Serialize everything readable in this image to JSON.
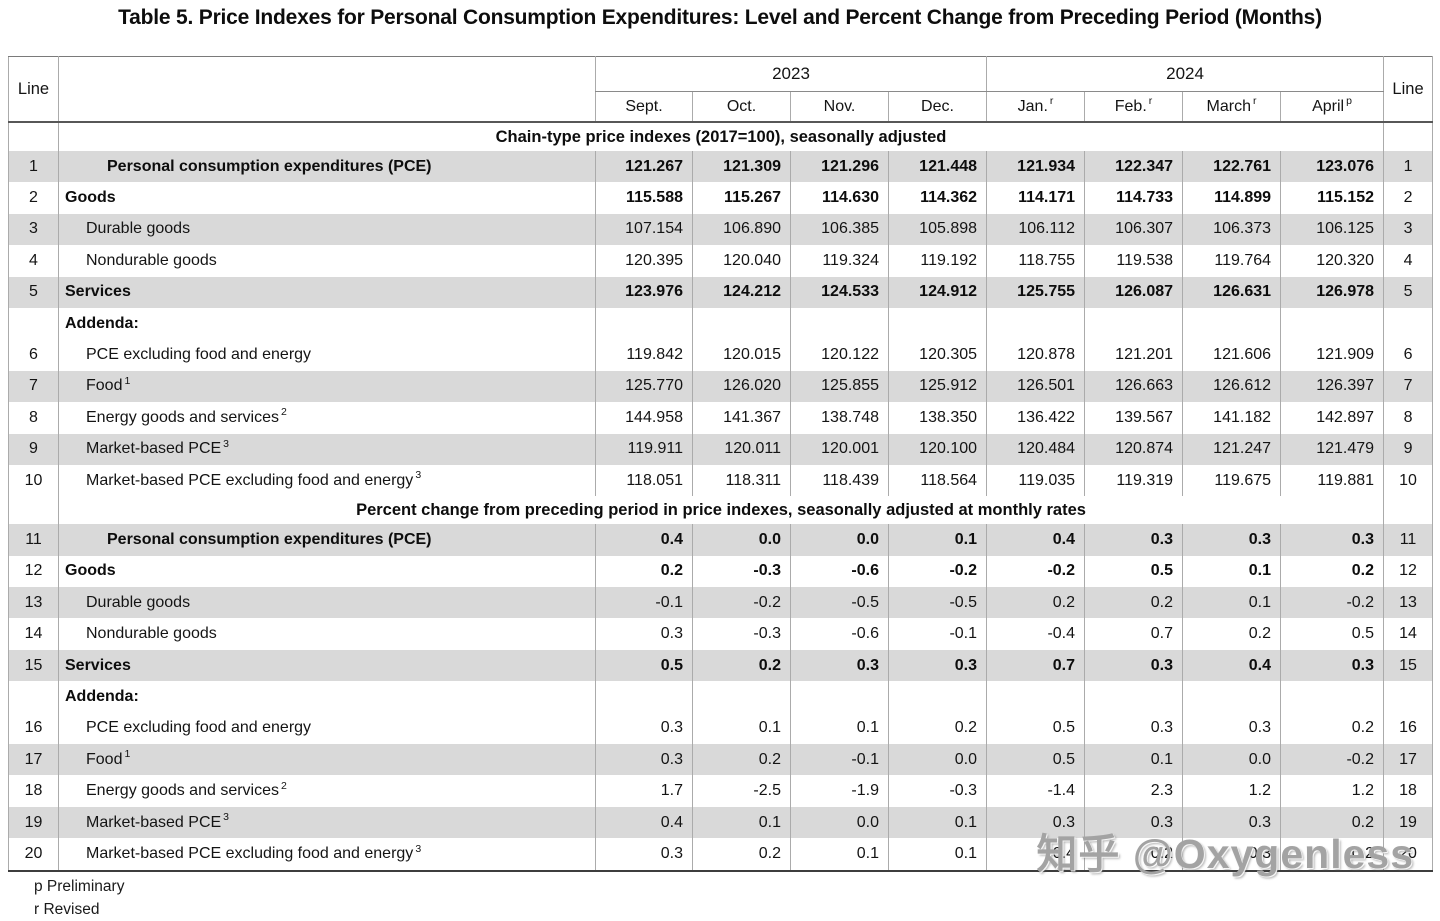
{
  "title": "Table 5. Price Indexes for Personal Consumption Expenditures: Level and Percent Change from Preceding Period (Months)",
  "header": {
    "line_label": "Line",
    "year_groups": [
      {
        "year": "2023",
        "months": [
          {
            "label": "Sept.",
            "sup": ""
          },
          {
            "label": "Oct.",
            "sup": ""
          },
          {
            "label": "Nov.",
            "sup": ""
          },
          {
            "label": "Dec.",
            "sup": ""
          }
        ]
      },
      {
        "year": "2024",
        "months": [
          {
            "label": "Jan.",
            "sup": "r"
          },
          {
            "label": "Feb.",
            "sup": "r"
          },
          {
            "label": "March",
            "sup": "r"
          },
          {
            "label": "April",
            "sup": "p"
          }
        ]
      }
    ]
  },
  "sections": [
    {
      "heading": "Chain-type price indexes (2017=100), seasonally adjusted",
      "rows": [
        {
          "line": "1",
          "label": "Personal consumption expenditures (PCE)",
          "sup": "",
          "indent": 2,
          "bold": true,
          "values": [
            "121.267",
            "121.309",
            "121.296",
            "121.448",
            "121.934",
            "122.347",
            "122.761",
            "123.076"
          ]
        },
        {
          "line": "2",
          "label": "Goods",
          "sup": "",
          "indent": 0,
          "bold": true,
          "values": [
            "115.588",
            "115.267",
            "114.630",
            "114.362",
            "114.171",
            "114.733",
            "114.899",
            "115.152"
          ]
        },
        {
          "line": "3",
          "label": "Durable goods",
          "sup": "",
          "indent": 1,
          "bold": false,
          "values": [
            "107.154",
            "106.890",
            "106.385",
            "105.898",
            "106.112",
            "106.307",
            "106.373",
            "106.125"
          ]
        },
        {
          "line": "4",
          "label": "Nondurable goods",
          "sup": "",
          "indent": 1,
          "bold": false,
          "values": [
            "120.395",
            "120.040",
            "119.324",
            "119.192",
            "118.755",
            "119.538",
            "119.764",
            "120.320"
          ]
        },
        {
          "line": "5",
          "label": "Services",
          "sup": "",
          "indent": 0,
          "bold": true,
          "values": [
            "123.976",
            "124.212",
            "124.533",
            "124.912",
            "125.755",
            "126.087",
            "126.631",
            "126.978"
          ]
        },
        {
          "line": "",
          "label": "Addenda:",
          "sup": "",
          "indent": 0,
          "bold": true,
          "values": []
        },
        {
          "line": "6",
          "label": "PCE excluding food and energy",
          "sup": "",
          "indent": 1,
          "bold": false,
          "values": [
            "119.842",
            "120.015",
            "120.122",
            "120.305",
            "120.878",
            "121.201",
            "121.606",
            "121.909"
          ]
        },
        {
          "line": "7",
          "label": "Food",
          "sup": "1",
          "indent": 1,
          "bold": false,
          "values": [
            "125.770",
            "126.020",
            "125.855",
            "125.912",
            "126.501",
            "126.663",
            "126.612",
            "126.397"
          ]
        },
        {
          "line": "8",
          "label": "Energy goods and services",
          "sup": "2",
          "indent": 1,
          "bold": false,
          "values": [
            "144.958",
            "141.367",
            "138.748",
            "138.350",
            "136.422",
            "139.567",
            "141.182",
            "142.897"
          ]
        },
        {
          "line": "9",
          "label": "Market-based PCE",
          "sup": "3",
          "indent": 1,
          "bold": false,
          "values": [
            "119.911",
            "120.011",
            "120.001",
            "120.100",
            "120.484",
            "120.874",
            "121.247",
            "121.479"
          ]
        },
        {
          "line": "10",
          "label": "Market-based PCE excluding food and energy",
          "sup": "3",
          "indent": 1,
          "bold": false,
          "values": [
            "118.051",
            "118.311",
            "118.439",
            "118.564",
            "119.035",
            "119.319",
            "119.675",
            "119.881"
          ]
        }
      ]
    },
    {
      "heading": "Percent change from preceding period in price indexes, seasonally adjusted at monthly rates",
      "rows": [
        {
          "line": "11",
          "label": "Personal consumption expenditures (PCE)",
          "sup": "",
          "indent": 2,
          "bold": true,
          "values": [
            "0.4",
            "0.0",
            "0.0",
            "0.1",
            "0.4",
            "0.3",
            "0.3",
            "0.3"
          ]
        },
        {
          "line": "12",
          "label": "Goods",
          "sup": "",
          "indent": 0,
          "bold": true,
          "values": [
            "0.2",
            "-0.3",
            "-0.6",
            "-0.2",
            "-0.2",
            "0.5",
            "0.1",
            "0.2"
          ]
        },
        {
          "line": "13",
          "label": "Durable goods",
          "sup": "",
          "indent": 1,
          "bold": false,
          "values": [
            "-0.1",
            "-0.2",
            "-0.5",
            "-0.5",
            "0.2",
            "0.2",
            "0.1",
            "-0.2"
          ]
        },
        {
          "line": "14",
          "label": "Nondurable goods",
          "sup": "",
          "indent": 1,
          "bold": false,
          "values": [
            "0.3",
            "-0.3",
            "-0.6",
            "-0.1",
            "-0.4",
            "0.7",
            "0.2",
            "0.5"
          ]
        },
        {
          "line": "15",
          "label": "Services",
          "sup": "",
          "indent": 0,
          "bold": true,
          "values": [
            "0.5",
            "0.2",
            "0.3",
            "0.3",
            "0.7",
            "0.3",
            "0.4",
            "0.3"
          ]
        },
        {
          "line": "",
          "label": "Addenda:",
          "sup": "",
          "indent": 0,
          "bold": true,
          "values": []
        },
        {
          "line": "16",
          "label": "PCE excluding food and energy",
          "sup": "",
          "indent": 1,
          "bold": false,
          "values": [
            "0.3",
            "0.1",
            "0.1",
            "0.2",
            "0.5",
            "0.3",
            "0.3",
            "0.2"
          ]
        },
        {
          "line": "17",
          "label": "Food",
          "sup": "1",
          "indent": 1,
          "bold": false,
          "values": [
            "0.3",
            "0.2",
            "-0.1",
            "0.0",
            "0.5",
            "0.1",
            "0.0",
            "-0.2"
          ]
        },
        {
          "line": "18",
          "label": "Energy goods and services",
          "sup": "2",
          "indent": 1,
          "bold": false,
          "values": [
            "1.7",
            "-2.5",
            "-1.9",
            "-0.3",
            "-1.4",
            "2.3",
            "1.2",
            "1.2"
          ]
        },
        {
          "line": "19",
          "label": "Market-based PCE",
          "sup": "3",
          "indent": 1,
          "bold": false,
          "values": [
            "0.4",
            "0.1",
            "0.0",
            "0.1",
            "0.3",
            "0.3",
            "0.3",
            "0.2"
          ]
        },
        {
          "line": "20",
          "label": "Market-based PCE excluding food and energy",
          "sup": "3",
          "indent": 1,
          "bold": false,
          "values": [
            "0.3",
            "0.2",
            "0.1",
            "0.1",
            "0.4",
            "0.2",
            "0.3",
            "0.2"
          ]
        }
      ]
    }
  ],
  "footnotes": [
    "p Preliminary",
    "r Revised"
  ],
  "watermark": "知乎 @Oxygenless",
  "colors": {
    "row_shade": "#d9d9d9",
    "grid_line": "#ababab",
    "strong_border": "#3d3d3d",
    "watermark_gray": "#a3a3a3",
    "text": "#141414"
  }
}
